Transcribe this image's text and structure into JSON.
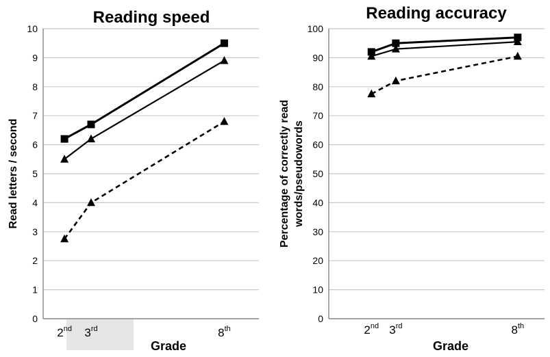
{
  "chart_data": [
    {
      "type": "line",
      "title": "Reading speed",
      "xlabel": "Grade",
      "ylabel": "Read letters / second",
      "ylim": [
        0,
        10
      ],
      "yticks": [
        0,
        1,
        2,
        3,
        4,
        5,
        6,
        7,
        8,
        9,
        10
      ],
      "grid": true,
      "categories": [
        {
          "base": "2",
          "sup": "nd"
        },
        {
          "base": "3",
          "sup": "rd"
        },
        {
          "base": "8",
          "sup": "th"
        }
      ],
      "x": [
        2,
        3,
        8
      ],
      "series": [
        {
          "style": "solid-thick",
          "marker": "square",
          "values": [
            6.2,
            6.7,
            9.5
          ]
        },
        {
          "style": "solid",
          "marker": "triangle",
          "values": [
            5.5,
            6.2,
            8.9
          ]
        },
        {
          "style": "dashed",
          "marker": "triangle",
          "values": [
            2.75,
            4.0,
            6.8
          ]
        }
      ],
      "highlight_categories": [
        "2nd",
        "3rd"
      ],
      "highlight_color": "#e6e6e6"
    },
    {
      "type": "line",
      "title": "Reading accuracy",
      "xlabel": "Grade",
      "ylabel_lines": [
        "Percentage of correctly read",
        "words/pseudowords"
      ],
      "ylim": [
        0,
        100
      ],
      "yticks": [
        0,
        10,
        20,
        30,
        40,
        50,
        60,
        70,
        80,
        90,
        100
      ],
      "grid": true,
      "categories": [
        {
          "base": "2",
          "sup": "nd"
        },
        {
          "base": "3",
          "sup": "rd"
        },
        {
          "base": "8",
          "sup": "th"
        }
      ],
      "x": [
        2,
        3,
        8
      ],
      "series": [
        {
          "style": "solid-thick",
          "marker": "square",
          "values": [
            92,
            95,
            97
          ]
        },
        {
          "style": "solid",
          "marker": "triangle",
          "values": [
            90.5,
            93,
            95.5
          ]
        },
        {
          "style": "dashed",
          "marker": "triangle",
          "values": [
            77.5,
            82,
            90.5
          ]
        }
      ]
    }
  ],
  "colors": {
    "line": "#000000",
    "grid": "#c8c8c8",
    "axis": "#8c8c8c",
    "highlight": "#e6e6e6"
  }
}
